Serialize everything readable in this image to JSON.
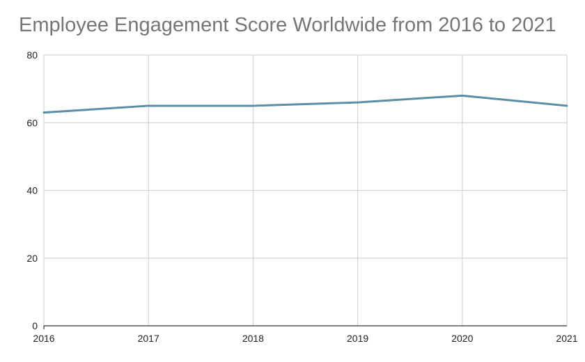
{
  "chart_data": {
    "type": "line",
    "title": "Employee Engagement Score Worldwide from 2016 to 2021",
    "xlabel": "",
    "ylabel": "",
    "categories": [
      "2016",
      "2017",
      "2018",
      "2019",
      "2020",
      "2021"
    ],
    "series": [
      {
        "name": "Employee Engagement Score",
        "values": [
          63,
          65,
          65,
          66,
          68,
          65
        ],
        "color": "#5b8ea6"
      }
    ],
    "ylim": [
      0,
      80
    ],
    "yticks": [
      0,
      20,
      40,
      60,
      80
    ],
    "grid": true,
    "legend": "none",
    "colors": {
      "grid": "#cccccc",
      "axis": "#333333",
      "title": "#757575",
      "tick_text": "#222222"
    }
  }
}
